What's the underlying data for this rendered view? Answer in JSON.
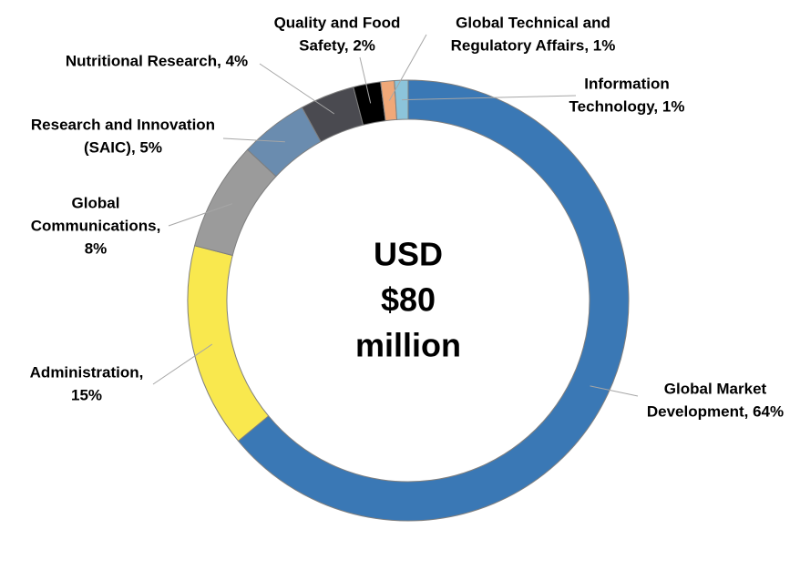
{
  "chart_data": {
    "type": "donut",
    "center_text": [
      "USD",
      "$80",
      "million"
    ],
    "values": [
      64,
      15,
      8,
      5,
      4,
      2,
      1,
      1
    ],
    "value_labels": [
      [
        "Global Market",
        "Development, 64%"
      ],
      [
        "Administration,",
        "15%"
      ],
      [
        "Global",
        "Communications,",
        "8%"
      ],
      [
        "Research and Innovation",
        "(SAIC), 5%"
      ],
      [
        "Nutritional Research, 4%"
      ],
      [
        "Quality and Food",
        "Safety, 2%"
      ],
      [
        "Global Technical and",
        "Regulatory Affairs, 1%"
      ],
      [
        "Information",
        "Technology, 1%"
      ]
    ],
    "colors": [
      "#3a78b5",
      "#f9e84e",
      "#9b9b9b",
      "#6a8caf",
      "#4a4a50",
      "#000000",
      "#f0a878",
      "#8cc4da"
    ]
  }
}
